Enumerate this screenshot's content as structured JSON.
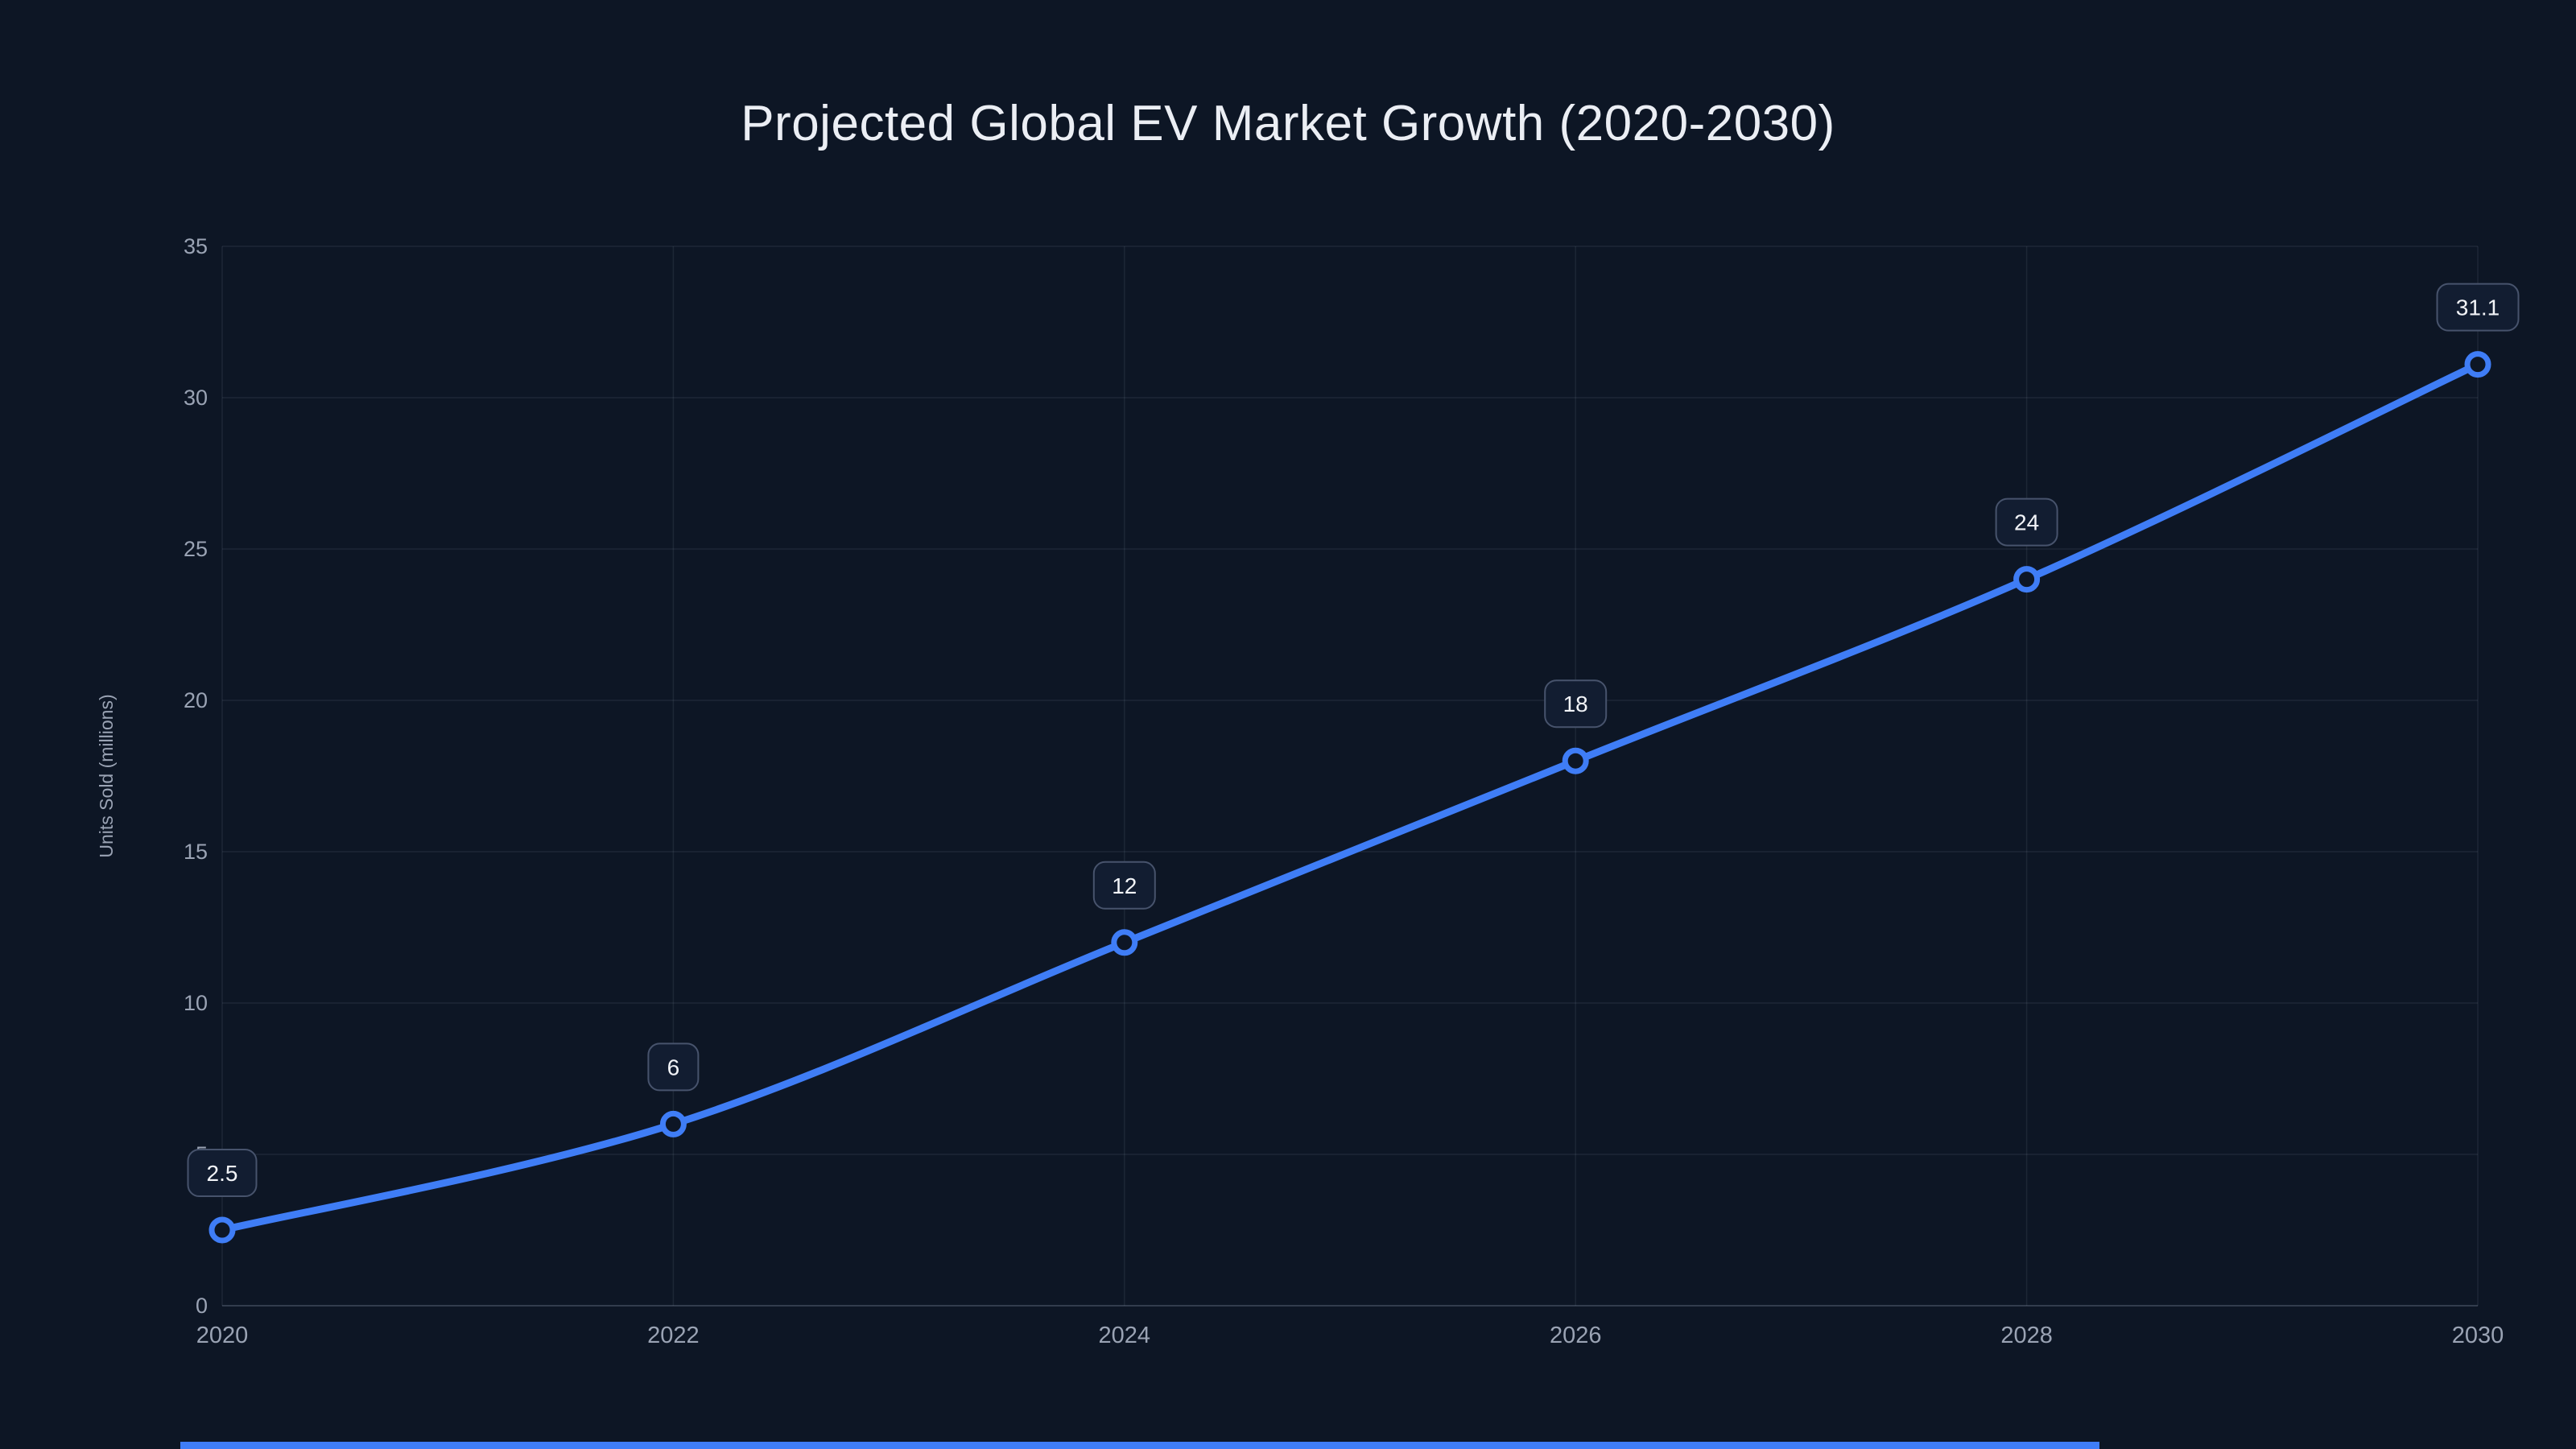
{
  "page": {
    "background": "#0d1625",
    "accent": "#3f7df6"
  },
  "chart_data": {
    "type": "line",
    "title": "Projected Global EV Market Growth (2020-2030)",
    "ylabel": "Units Sold (millions)",
    "xlabel": "",
    "x": [
      "2020",
      "2022",
      "2024",
      "2026",
      "2028",
      "2030"
    ],
    "xticks": [
      "2020",
      "2022",
      "2024",
      "2026",
      "2028",
      "2030"
    ],
    "yticks": [
      0,
      5,
      10,
      15,
      20,
      25,
      30,
      35
    ],
    "ylim": [
      0,
      35
    ],
    "grid": true,
    "legend": "none",
    "series": [
      {
        "name": "Units Sold (millions)",
        "values": [
          2.5,
          6,
          12,
          18,
          24,
          31.1
        ],
        "point_labels": [
          "2.5",
          "6",
          "12",
          "18",
          "24",
          "31.1"
        ]
      }
    ],
    "colors": {
      "line": "#3f7df6",
      "marker_fill": "#0d1625",
      "grid": "rgba(148,163,184,0.12)",
      "axis": "rgba(148,163,184,0.28)",
      "tick_text": "#9aa3b4",
      "title_text": "#ebeef4",
      "label_box_bg": "#121d31",
      "label_box_border": "#47536c",
      "label_text": "#f2f4f8"
    }
  }
}
